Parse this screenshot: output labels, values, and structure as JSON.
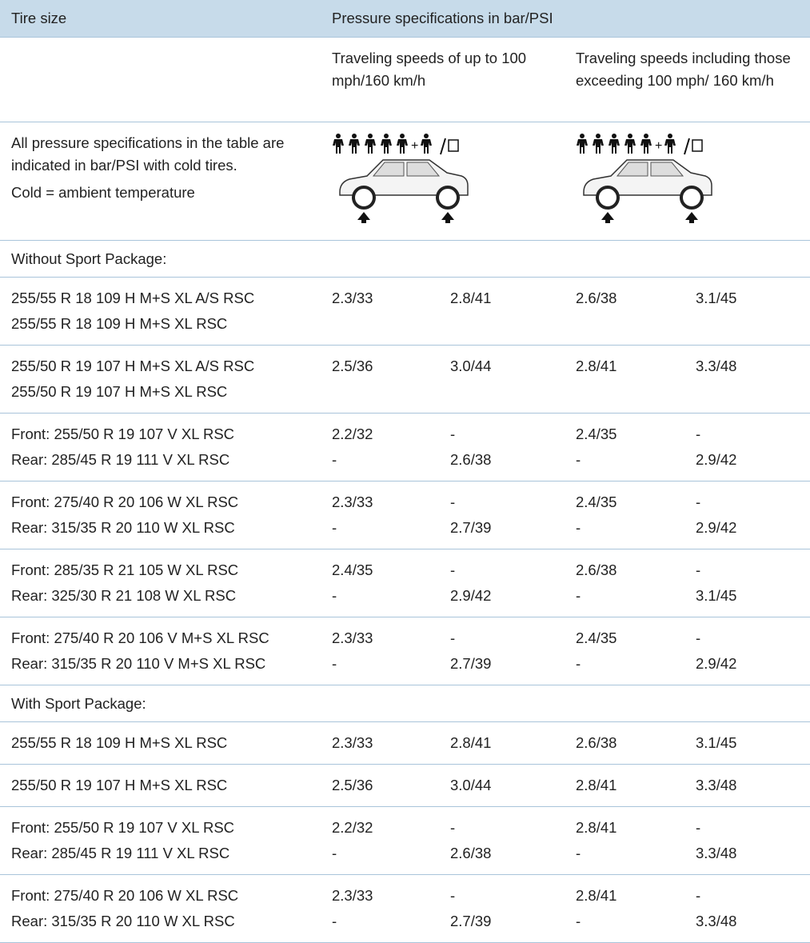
{
  "header": {
    "tire_size": "Tire size",
    "pressure": "Pressure specifications in bar/PSI"
  },
  "speed_headers": [
    "Traveling speeds of up to 100 mph/160 km/h",
    "Traveling speeds including those exceeding 100 mph/ 160 km/h"
  ],
  "note": [
    "All pressure specifications in the table are indicated in bar/PSI with cold tires.",
    "Cold = ambient temperature"
  ],
  "sections": [
    {
      "title": "Without Sport Package:",
      "groups": [
        {
          "rows": [
            [
              "255/55 R 18 109 H M+S XL A/S RSC",
              "2.3/33",
              "2.8/41",
              "2.6/38",
              "3.1/45"
            ],
            [
              "255/55 R 18 109 H M+S XL RSC"
            ]
          ]
        },
        {
          "rows": [
            [
              "255/50 R 19 107 H M+S XL A/S RSC",
              "2.5/36",
              "3.0/44",
              "2.8/41",
              "3.3/48"
            ],
            [
              "255/50 R 19 107 H M+S XL RSC"
            ]
          ]
        },
        {
          "rows": [
            [
              "Front: 255/50 R 19 107 V XL RSC",
              "2.2/32",
              "-",
              "2.4/35",
              "-"
            ],
            [
              "Rear: 285/45 R 19 111 V XL RSC",
              "-",
              "2.6/38",
              "-",
              "2.9/42"
            ]
          ]
        },
        {
          "rows": [
            [
              "Front: 275/40 R 20 106 W XL RSC",
              "2.3/33",
              "-",
              "2.4/35",
              "-"
            ],
            [
              "Rear: 315/35 R 20 110 W XL RSC",
              "-",
              "2.7/39",
              "-",
              "2.9/42"
            ]
          ]
        },
        {
          "rows": [
            [
              "Front: 285/35 R 21 105 W XL RSC",
              "2.4/35",
              "-",
              "2.6/38",
              "-"
            ],
            [
              "Rear: 325/30 R 21 108 W XL RSC",
              "-",
              "2.9/42",
              "-",
              "3.1/45"
            ]
          ]
        },
        {
          "rows": [
            [
              "Front: 275/40 R 20 106 V M+S XL RSC",
              "2.3/33",
              "-",
              "2.4/35",
              "-"
            ],
            [
              "Rear: 315/35 R 20 110 V M+S XL RSC",
              "-",
              "2.7/39",
              "-",
              "2.9/42"
            ]
          ]
        }
      ]
    },
    {
      "title": "With Sport Package:",
      "groups": [
        {
          "rows": [
            [
              "255/55 R 18 109 H M+S XL RSC",
              "2.3/33",
              "2.8/41",
              "2.6/38",
              "3.1/45"
            ]
          ]
        },
        {
          "rows": [
            [
              "255/50 R 19 107 H M+S XL RSC",
              "2.5/36",
              "3.0/44",
              "2.8/41",
              "3.3/48"
            ]
          ]
        },
        {
          "rows": [
            [
              "Front: 255/50 R 19 107 V XL RSC",
              "2.2/32",
              "-",
              "2.8/41",
              "-"
            ],
            [
              "Rear: 285/45 R 19 111 V XL RSC",
              "-",
              "2.6/38",
              "-",
              "3.3/48"
            ]
          ]
        },
        {
          "rows": [
            [
              "Front: 275/40 R 20 106 W XL RSC",
              "2.3/33",
              "-",
              "2.8/41",
              "-"
            ],
            [
              "Rear: 315/35 R 20 110 W XL RSC",
              "-",
              "2.7/39",
              "-",
              "3.3/48"
            ]
          ]
        }
      ]
    }
  ]
}
